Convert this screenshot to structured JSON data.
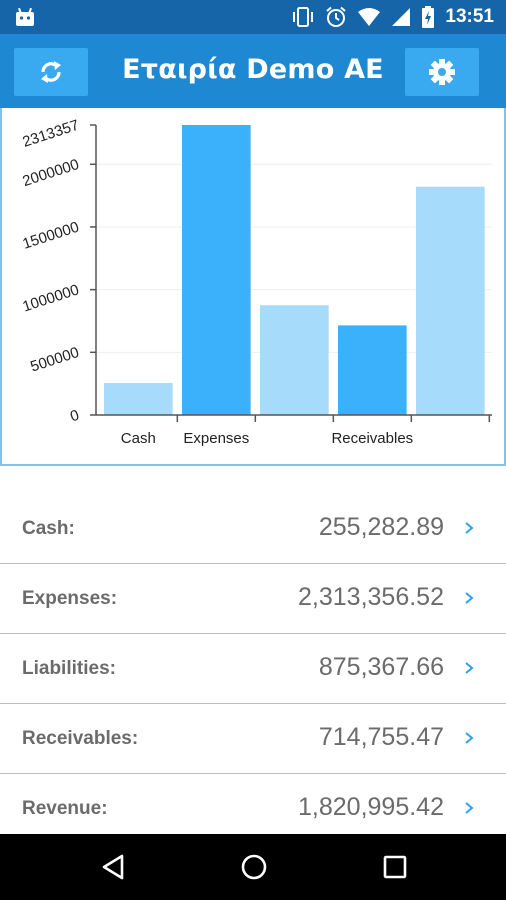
{
  "status_bar": {
    "time": "13:51",
    "icons": [
      "android-icon",
      "vibrate-icon",
      "alarm-icon",
      "wifi-icon",
      "signal-icon",
      "battery-charging-icon"
    ]
  },
  "app_bar": {
    "title": "Εταιρία Demo AE",
    "left_icon": "refresh-icon",
    "right_icon": "settings-gear-icon"
  },
  "chart_data": {
    "type": "bar",
    "categories": [
      "Cash",
      "Expenses",
      "Liabilities",
      "Receivables",
      "Revenue"
    ],
    "visible_x_labels": [
      "Cash",
      "Expenses",
      "",
      "Receivables",
      ""
    ],
    "values": [
      255282.89,
      2313356.52,
      875367.66,
      714755.47,
      1820995.42
    ],
    "yticks": [
      0,
      500000,
      1000000,
      1500000,
      2000000,
      2313357
    ],
    "ytick_labels": [
      "0",
      "500000",
      "1000000",
      "1500000",
      "2000000",
      "2313357"
    ],
    "ylim": [
      0,
      2313357
    ],
    "grid": true,
    "bar_colors": [
      "#a6dbfc",
      "#3cb1fb",
      "#a6dbfc",
      "#3cb1fb",
      "#a6dbfc"
    ],
    "title": "",
    "xlabel": "",
    "ylabel": ""
  },
  "list": [
    {
      "label": "Cash:",
      "value": "255,282.89"
    },
    {
      "label": "Expenses:",
      "value": "2,313,356.52"
    },
    {
      "label": "Liabilities:",
      "value": "875,367.66"
    },
    {
      "label": "Receivables:",
      "value": "714,755.47"
    },
    {
      "label": "Revenue:",
      "value": "1,820,995.42"
    }
  ],
  "colors": {
    "status_bar": "#1565a8",
    "app_bar": "#1e88d2",
    "app_button": "#3aaaf0",
    "chevron": "#29a3ea",
    "text": "#6b6b6b"
  },
  "nav_bar": {
    "icons": [
      "back-icon",
      "home-icon",
      "recent-apps-icon"
    ]
  }
}
